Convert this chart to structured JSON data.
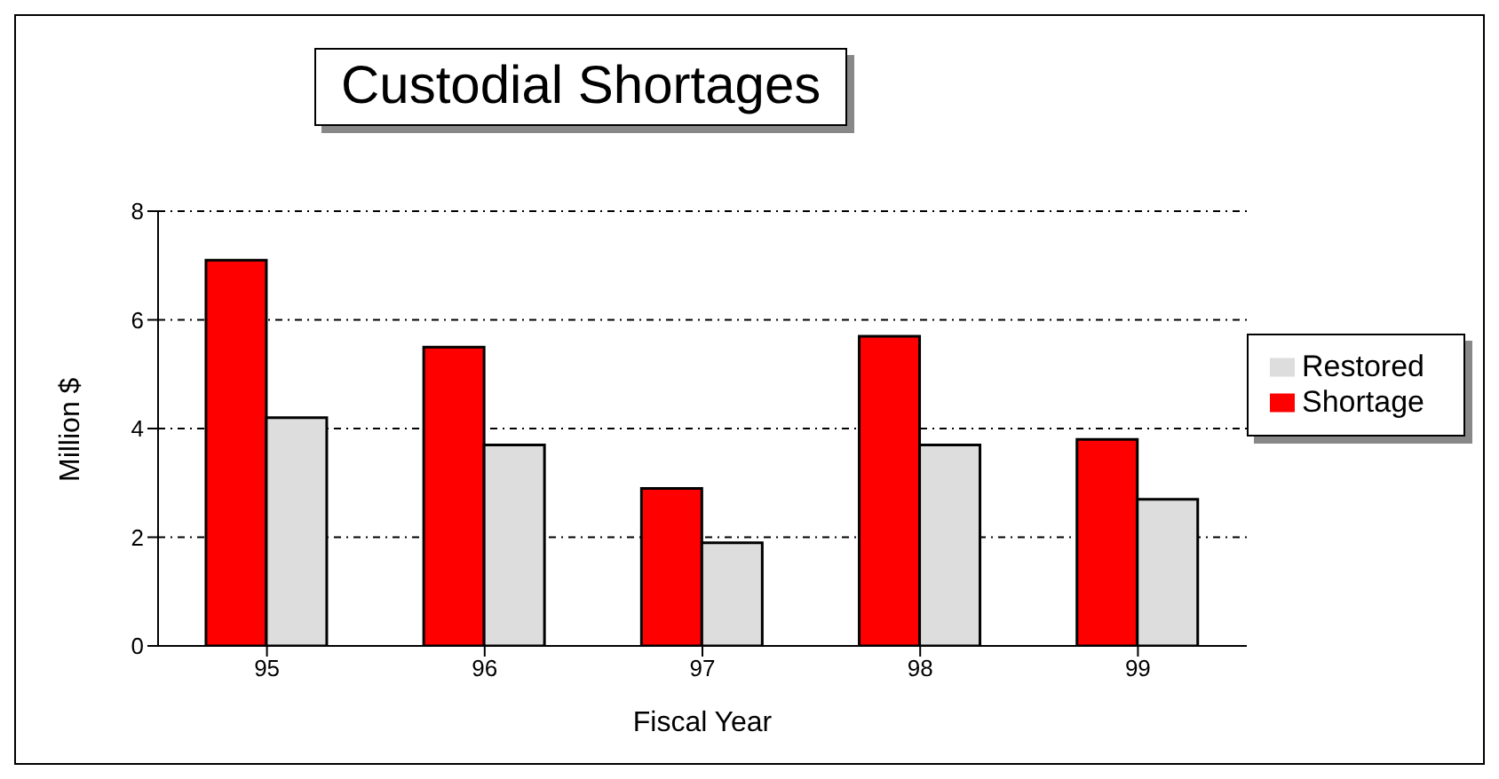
{
  "chart_data": {
    "type": "bar",
    "title": "Custodial Shortages",
    "xlabel": "Fiscal Year",
    "ylabel": "Million $",
    "categories": [
      "95",
      "96",
      "97",
      "98",
      "99"
    ],
    "series": [
      {
        "name": "Shortage",
        "color": "#ff0000",
        "values": [
          7.1,
          5.5,
          2.9,
          5.7,
          3.8
        ]
      },
      {
        "name": "Restored",
        "color": "#dddddd",
        "values": [
          4.2,
          3.7,
          1.9,
          3.7,
          2.7
        ]
      }
    ],
    "ylim": [
      0,
      8
    ],
    "yticks": [
      0,
      2,
      4,
      6,
      8
    ],
    "grid": "y",
    "legend": "right"
  }
}
